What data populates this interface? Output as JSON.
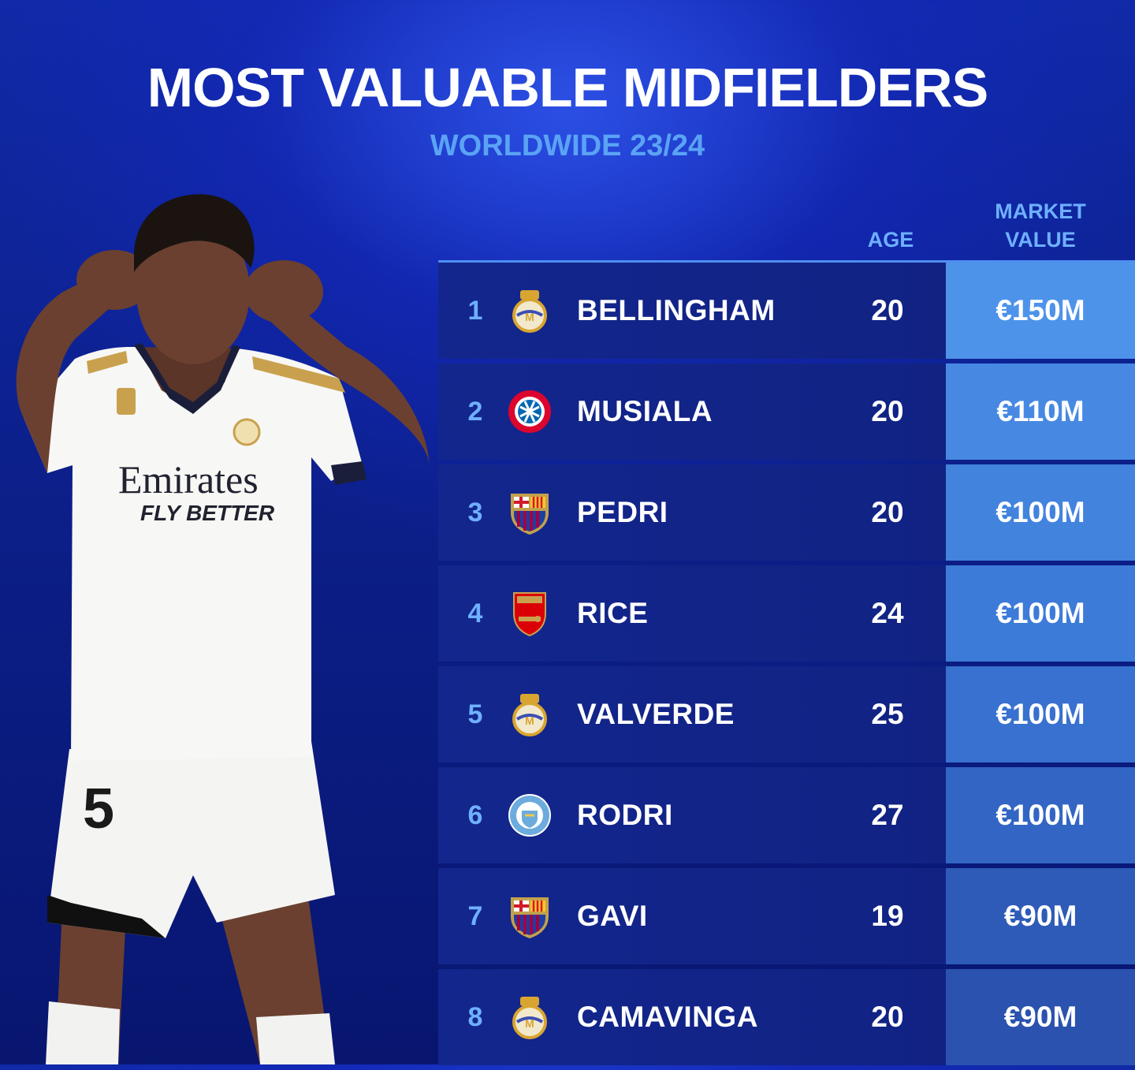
{
  "header": {
    "title": "MOST VALUABLE MIDFIELDERS",
    "subtitle": "WORLDWIDE 23/24"
  },
  "table": {
    "columns": {
      "age": "AGE",
      "market_value_line1": "MARKET",
      "market_value_line2": "VALUE"
    },
    "rows": [
      {
        "rank": "1",
        "name": "BELLINGHAM",
        "age": "20",
        "value": "€150M",
        "club_icon": "real-madrid-crest-icon",
        "value_color": "#4d93ea"
      },
      {
        "rank": "2",
        "name": "MUSIALA",
        "age": "20",
        "value": "€110M",
        "club_icon": "bayern-munich-crest-icon",
        "value_color": "#4789e2"
      },
      {
        "rank": "3",
        "name": "PEDRI",
        "age": "20",
        "value": "€100M",
        "club_icon": "fc-barcelona-crest-icon",
        "value_color": "#4283de"
      },
      {
        "rank": "4",
        "name": "RICE",
        "age": "24",
        "value": "€100M",
        "club_icon": "arsenal-crest-icon",
        "value_color": "#3d7bd8"
      },
      {
        "rank": "5",
        "name": "VALVERDE",
        "age": "25",
        "value": "€100M",
        "club_icon": "real-madrid-crest-icon",
        "value_color": "#3871cf"
      },
      {
        "rank": "6",
        "name": "RODRI",
        "age": "27",
        "value": "€100M",
        "club_icon": "manchester-city-crest-icon",
        "value_color": "#3366c4"
      },
      {
        "rank": "7",
        "name": "GAVI",
        "age": "19",
        "value": "€90M",
        "club_icon": "fc-barcelona-crest-icon",
        "value_color": "#2e5bb8"
      },
      {
        "rank": "8",
        "name": "CAMAVINGA",
        "age": "20",
        "value": "€90M",
        "club_icon": "real-madrid-crest-icon",
        "value_color": "#2a52ae"
      }
    ]
  },
  "player_photo": {
    "shirt_sponsor_line1": "Emirates",
    "shirt_sponsor_line2": "FLY BETTER",
    "shorts_number": "5"
  }
}
